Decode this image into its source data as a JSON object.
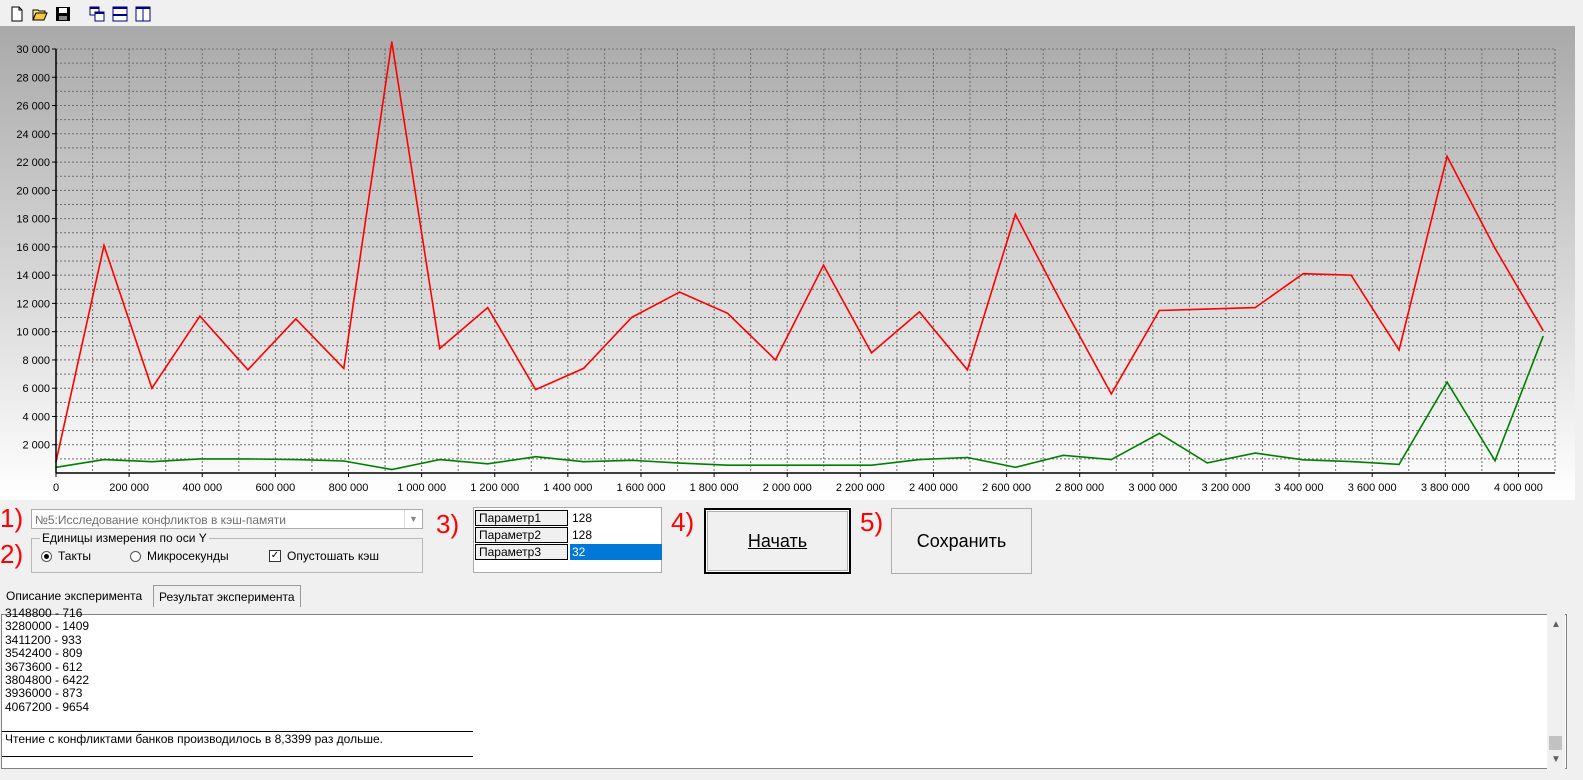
{
  "toolbar": {
    "buttons": [
      {
        "name": "new-file-icon"
      },
      {
        "name": "open-folder-icon"
      },
      {
        "name": "save-disk-icon"
      },
      {
        "name": "cascade-windows-icon"
      },
      {
        "name": "tile-horizontal-icon"
      },
      {
        "name": "tile-vertical-icon"
      }
    ]
  },
  "chart_data": {
    "type": "line",
    "title": "",
    "xlabel": "",
    "ylabel": "",
    "xlim": [
      0,
      4100000
    ],
    "ylim": [
      0,
      30000
    ],
    "x_ticks": [
      0,
      200000,
      400000,
      600000,
      800000,
      1000000,
      1200000,
      1400000,
      1600000,
      1800000,
      2000000,
      2200000,
      2400000,
      2600000,
      2800000,
      3000000,
      3200000,
      3400000,
      3600000,
      3800000,
      4000000
    ],
    "x_tick_labels": [
      "0",
      "200 000",
      "400 000",
      "600 000",
      "800 000",
      "1 000 000",
      "1 200 000",
      "1 400 000",
      "1 600 000",
      "1 800 000",
      "2 000 000",
      "2 200 000",
      "2 400 000",
      "2 600 000",
      "2 800 000",
      "3 000 000",
      "3 200 000",
      "3 400 000",
      "3 600 000",
      "3 800 000",
      "4 000 000"
    ],
    "y_ticks": [
      2000,
      4000,
      6000,
      8000,
      10000,
      12000,
      14000,
      16000,
      18000,
      20000,
      22000,
      24000,
      26000,
      28000,
      30000
    ],
    "y_tick_labels": [
      "2 000",
      "4 000",
      "6 000",
      "8 000",
      "10 000",
      "12 000",
      "14 000",
      "16 000",
      "18 000",
      "20 000",
      "22 000",
      "24 000",
      "26 000",
      "28 000",
      "30 000"
    ],
    "grid": true,
    "x": [
      0,
      131200,
      262400,
      393600,
      524800,
      656000,
      787200,
      918400,
      1049600,
      1180800,
      1312000,
      1443200,
      1574400,
      1705600,
      1836800,
      1968000,
      2099200,
      2230400,
      2361600,
      2492800,
      2624000,
      2755200,
      2886400,
      3017600,
      3148800,
      3280000,
      3411200,
      3542400,
      3673600,
      3804800,
      3936000,
      4067200
    ],
    "series": [
      {
        "color": "#ff0000",
        "values": [
          800,
          16100,
          6000,
          11100,
          7300,
          10900,
          7400,
          30500,
          8800,
          11700,
          5900,
          7400,
          11000,
          12800,
          11300,
          8000,
          14700,
          8500,
          11400,
          7300,
          18300,
          11800,
          5600,
          11500,
          11600,
          11700,
          14100,
          14000,
          8700,
          22400,
          15900,
          10100
        ]
      },
      {
        "color": "#008000",
        "values": [
          400,
          950,
          800,
          1000,
          1000,
          950,
          850,
          250,
          950,
          650,
          1150,
          800,
          900,
          700,
          550,
          550,
          550,
          550,
          950,
          1100,
          400,
          1250,
          950,
          2800,
          716,
          1409,
          933,
          809,
          612,
          6422,
          873,
          9654
        ]
      }
    ]
  },
  "labels": {
    "n1": "1)",
    "n2": "2)",
    "n3": "3)",
    "n4": "4)",
    "n5": "5)"
  },
  "experiment_select": {
    "value": "№5:Исследование конфликтов в кэш-памяти"
  },
  "units_group": {
    "legend": "Единицы измерения по оси Y",
    "radio_ticks": "Такты",
    "radio_micro": "Микросекунды",
    "checkbox_flush": "Опустошать кэш"
  },
  "params": [
    {
      "name": "Параметр1",
      "value": "128"
    },
    {
      "name": "Параметр2",
      "value": "128"
    },
    {
      "name": "Параметр3",
      "value": "32"
    }
  ],
  "buttons": {
    "start": "Начать",
    "save": "Сохранить"
  },
  "tabs": {
    "description": "Описание эксперимента",
    "result": "Результат эксперимента"
  },
  "memo": {
    "lines": [
      "3148800 - 716",
      "3280000 - 1409",
      "3411200 - 933",
      "3542400 - 809",
      "3673600 - 612",
      "3804800 - 6422",
      "3936000 - 873",
      "4067200 - 9654"
    ],
    "conclusion": "Чтение с конфликтами банков производилось в 8,3399 раз дольше."
  },
  "scrollbar": {
    "up_icon": "scroll-up-arrow-icon",
    "down_icon": "scroll-down-arrow-icon"
  }
}
